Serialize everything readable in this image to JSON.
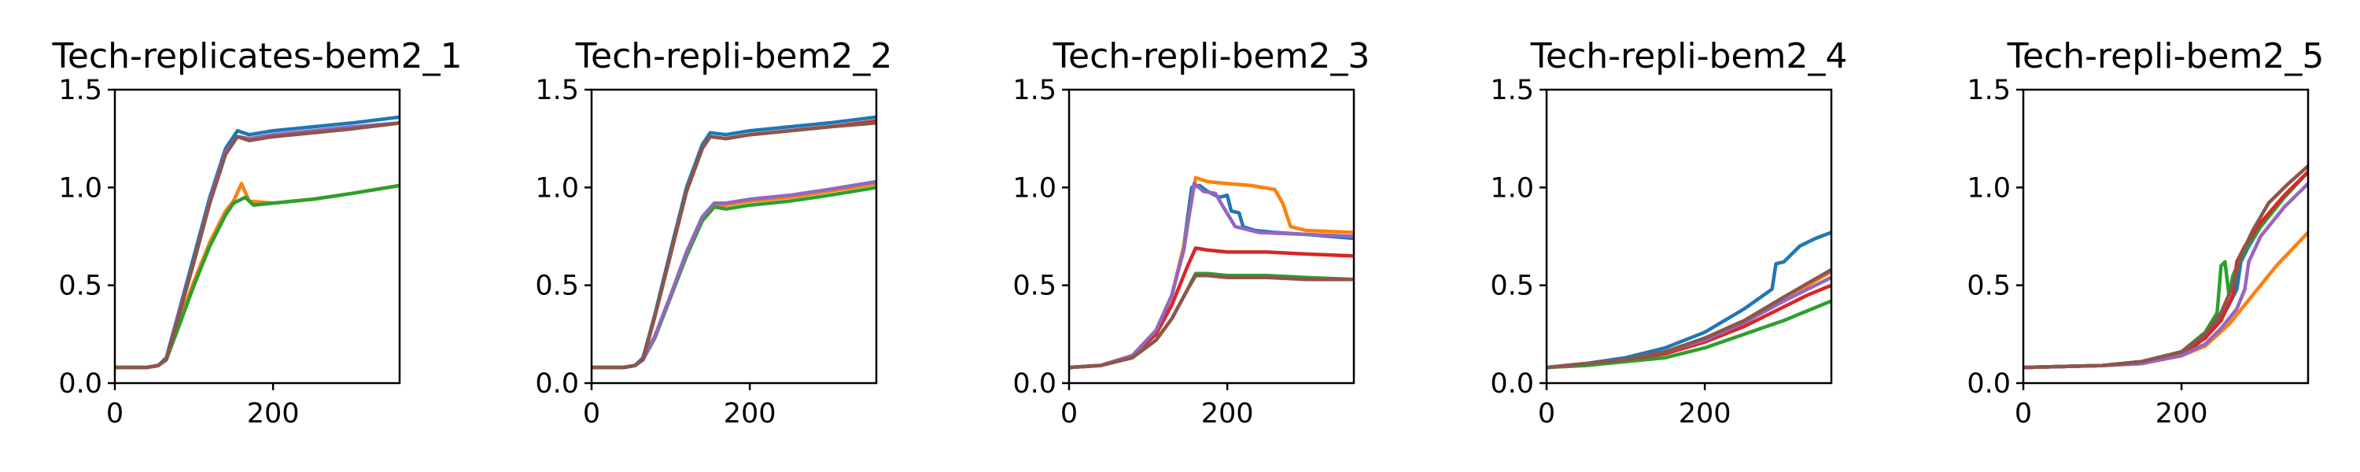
{
  "colors": {
    "C0": "#1f77b4",
    "C1": "#ff7f0e",
    "C2": "#2ca02c",
    "C3": "#d62728",
    "C4": "#9467bd",
    "C5": "#8c564b"
  },
  "chart_data": [
    {
      "type": "line",
      "title": "Tech-replicates-bem2_1",
      "xlim": [
        0,
        360
      ],
      "ylim": [
        0,
        1.5
      ],
      "xticks": [
        "0",
        "200"
      ],
      "yticks": [
        "0.0",
        "0.5",
        "1.0",
        "1.5"
      ],
      "grid": false,
      "series": [
        {
          "color": "C0",
          "x": [
            0,
            40,
            55,
            65,
            80,
            100,
            120,
            140,
            155,
            170,
            200,
            250,
            300,
            360
          ],
          "y": [
            0.08,
            0.08,
            0.09,
            0.13,
            0.35,
            0.65,
            0.95,
            1.2,
            1.29,
            1.27,
            1.29,
            1.31,
            1.33,
            1.36
          ]
        },
        {
          "color": "C1",
          "x": [
            0,
            40,
            55,
            65,
            80,
            100,
            120,
            140,
            150,
            160,
            170,
            200,
            250,
            300,
            360
          ],
          "y": [
            0.08,
            0.08,
            0.09,
            0.12,
            0.3,
            0.52,
            0.72,
            0.88,
            0.93,
            1.02,
            0.93,
            0.92,
            0.94,
            0.97,
            1.01
          ]
        },
        {
          "color": "C2",
          "x": [
            0,
            40,
            55,
            65,
            80,
            100,
            120,
            140,
            150,
            165,
            175,
            200,
            250,
            300,
            360
          ],
          "y": [
            0.08,
            0.08,
            0.09,
            0.12,
            0.28,
            0.5,
            0.7,
            0.86,
            0.92,
            0.95,
            0.91,
            0.92,
            0.94,
            0.97,
            1.01
          ]
        },
        {
          "color": "C3",
          "x": [
            0,
            40,
            55,
            65,
            80,
            100,
            120,
            140,
            155,
            170,
            200,
            250,
            300,
            360
          ],
          "y": [
            0.08,
            0.08,
            0.09,
            0.12,
            0.34,
            0.62,
            0.93,
            1.18,
            1.26,
            1.25,
            1.26,
            1.28,
            1.3,
            1.33
          ]
        },
        {
          "color": "C4",
          "x": [
            0,
            40,
            55,
            65,
            80,
            100,
            120,
            140,
            155,
            170,
            200,
            250,
            300,
            360
          ],
          "y": [
            0.08,
            0.08,
            0.09,
            0.12,
            0.34,
            0.62,
            0.93,
            1.18,
            1.26,
            1.25,
            1.27,
            1.29,
            1.31,
            1.33
          ]
        },
        {
          "color": "C5",
          "x": [
            0,
            40,
            55,
            65,
            80,
            100,
            120,
            140,
            155,
            170,
            200,
            250,
            300,
            360
          ],
          "y": [
            0.08,
            0.08,
            0.09,
            0.12,
            0.33,
            0.62,
            0.92,
            1.17,
            1.26,
            1.24,
            1.26,
            1.28,
            1.3,
            1.33
          ]
        }
      ]
    },
    {
      "type": "line",
      "title": "Tech-repli-bem2_2",
      "xlim": [
        0,
        360
      ],
      "ylim": [
        0,
        1.5
      ],
      "xticks": [
        "0",
        "200"
      ],
      "yticks": [
        "0.0",
        "0.5",
        "1.0",
        "1.5"
      ],
      "grid": false,
      "series": [
        {
          "color": "C0",
          "x": [
            0,
            40,
            55,
            65,
            80,
            100,
            120,
            140,
            150,
            170,
            200,
            250,
            300,
            360
          ],
          "y": [
            0.08,
            0.08,
            0.09,
            0.13,
            0.35,
            0.68,
            1.0,
            1.22,
            1.28,
            1.27,
            1.29,
            1.31,
            1.33,
            1.36
          ]
        },
        {
          "color": "C1",
          "x": [
            0,
            40,
            55,
            65,
            80,
            100,
            120,
            140,
            155,
            170,
            200,
            250,
            300,
            360
          ],
          "y": [
            0.08,
            0.08,
            0.09,
            0.12,
            0.24,
            0.45,
            0.67,
            0.85,
            0.91,
            0.91,
            0.93,
            0.95,
            0.98,
            1.02
          ]
        },
        {
          "color": "C2",
          "x": [
            0,
            40,
            55,
            65,
            80,
            100,
            120,
            140,
            155,
            170,
            200,
            250,
            300,
            360
          ],
          "y": [
            0.08,
            0.08,
            0.09,
            0.12,
            0.23,
            0.44,
            0.65,
            0.83,
            0.9,
            0.89,
            0.91,
            0.93,
            0.96,
            1.0
          ]
        },
        {
          "color": "C3",
          "x": [
            0,
            40,
            55,
            65,
            80,
            100,
            120,
            140,
            150,
            170,
            200,
            250,
            300,
            360
          ],
          "y": [
            0.08,
            0.08,
            0.09,
            0.12,
            0.34,
            0.66,
            0.98,
            1.2,
            1.26,
            1.25,
            1.27,
            1.29,
            1.31,
            1.34
          ]
        },
        {
          "color": "C4",
          "x": [
            0,
            40,
            55,
            65,
            80,
            100,
            120,
            140,
            155,
            170,
            200,
            250,
            300,
            360
          ],
          "y": [
            0.08,
            0.08,
            0.09,
            0.12,
            0.24,
            0.45,
            0.67,
            0.85,
            0.92,
            0.92,
            0.94,
            0.96,
            0.99,
            1.03
          ]
        },
        {
          "color": "C5",
          "x": [
            0,
            40,
            55,
            65,
            80,
            100,
            120,
            140,
            150,
            170,
            200,
            250,
            300,
            360
          ],
          "y": [
            0.08,
            0.08,
            0.09,
            0.12,
            0.34,
            0.66,
            0.98,
            1.2,
            1.26,
            1.25,
            1.27,
            1.29,
            1.31,
            1.33
          ]
        }
      ]
    },
    {
      "type": "line",
      "title": "Tech-repli-bem2_3",
      "xlim": [
        0,
        360
      ],
      "ylim": [
        0,
        1.5
      ],
      "xticks": [
        "0",
        "200"
      ],
      "yticks": [
        "0.0",
        "0.5",
        "1.0",
        "1.5"
      ],
      "grid": false,
      "series": [
        {
          "color": "C0",
          "x": [
            0,
            40,
            80,
            110,
            130,
            145,
            155,
            165,
            175,
            190,
            200,
            205,
            215,
            220,
            235,
            260,
            300,
            360
          ],
          "y": [
            0.08,
            0.09,
            0.14,
            0.27,
            0.45,
            0.7,
            1.0,
            1.01,
            0.98,
            0.95,
            0.96,
            0.88,
            0.87,
            0.8,
            0.78,
            0.77,
            0.76,
            0.74
          ]
        },
        {
          "color": "C1",
          "x": [
            0,
            40,
            80,
            110,
            130,
            145,
            160,
            175,
            200,
            230,
            260,
            270,
            280,
            300,
            360
          ],
          "y": [
            0.08,
            0.09,
            0.14,
            0.27,
            0.45,
            0.7,
            1.05,
            1.03,
            1.02,
            1.01,
            0.99,
            0.92,
            0.8,
            0.78,
            0.77
          ]
        },
        {
          "color": "C2",
          "x": [
            0,
            40,
            80,
            110,
            130,
            150,
            160,
            175,
            200,
            250,
            300,
            360
          ],
          "y": [
            0.08,
            0.09,
            0.13,
            0.22,
            0.33,
            0.48,
            0.56,
            0.56,
            0.55,
            0.55,
            0.54,
            0.53
          ]
        },
        {
          "color": "C3",
          "x": [
            0,
            40,
            80,
            110,
            130,
            150,
            160,
            175,
            200,
            250,
            300,
            360
          ],
          "y": [
            0.08,
            0.09,
            0.14,
            0.25,
            0.4,
            0.6,
            0.69,
            0.68,
            0.67,
            0.67,
            0.66,
            0.65
          ]
        },
        {
          "color": "C4",
          "x": [
            0,
            40,
            80,
            110,
            130,
            145,
            158,
            170,
            185,
            195,
            210,
            240,
            300,
            360
          ],
          "y": [
            0.08,
            0.09,
            0.14,
            0.27,
            0.45,
            0.68,
            1.02,
            0.98,
            0.97,
            0.9,
            0.8,
            0.77,
            0.76,
            0.75
          ]
        },
        {
          "color": "C5",
          "x": [
            0,
            40,
            80,
            110,
            130,
            150,
            160,
            175,
            200,
            250,
            300,
            360
          ],
          "y": [
            0.08,
            0.09,
            0.13,
            0.22,
            0.33,
            0.48,
            0.55,
            0.55,
            0.54,
            0.54,
            0.53,
            0.53
          ]
        }
      ]
    },
    {
      "type": "line",
      "title": "Tech-repli-bem2_4",
      "xlim": [
        0,
        360
      ],
      "ylim": [
        0,
        1.5
      ],
      "xticks": [
        "0",
        "200"
      ],
      "yticks": [
        "0.0",
        "0.5",
        "1.0",
        "1.5"
      ],
      "grid": false,
      "series": [
        {
          "color": "C0",
          "x": [
            0,
            50,
            100,
            150,
            200,
            250,
            285,
            290,
            300,
            320,
            340,
            360
          ],
          "y": [
            0.08,
            0.1,
            0.13,
            0.18,
            0.26,
            0.38,
            0.48,
            0.61,
            0.62,
            0.7,
            0.74,
            0.77
          ]
        },
        {
          "color": "C1",
          "x": [
            0,
            50,
            100,
            150,
            200,
            250,
            300,
            330,
            360
          ],
          "y": [
            0.08,
            0.1,
            0.12,
            0.16,
            0.23,
            0.32,
            0.44,
            0.5,
            0.57
          ]
        },
        {
          "color": "C2",
          "x": [
            0,
            50,
            100,
            150,
            200,
            250,
            300,
            330,
            360
          ],
          "y": [
            0.08,
            0.09,
            0.11,
            0.13,
            0.18,
            0.25,
            0.32,
            0.37,
            0.42
          ]
        },
        {
          "color": "C3",
          "x": [
            0,
            50,
            100,
            150,
            200,
            250,
            300,
            330,
            360
          ],
          "y": [
            0.08,
            0.1,
            0.12,
            0.15,
            0.21,
            0.29,
            0.39,
            0.45,
            0.5
          ]
        },
        {
          "color": "C4",
          "x": [
            0,
            50,
            100,
            150,
            200,
            250,
            300,
            330,
            360
          ],
          "y": [
            0.08,
            0.1,
            0.12,
            0.16,
            0.22,
            0.31,
            0.42,
            0.48,
            0.54
          ]
        },
        {
          "color": "C5",
          "x": [
            0,
            50,
            100,
            150,
            200,
            250,
            300,
            330,
            360
          ],
          "y": [
            0.08,
            0.1,
            0.12,
            0.16,
            0.23,
            0.32,
            0.44,
            0.51,
            0.58
          ]
        }
      ]
    },
    {
      "type": "line",
      "title": "Tech-repli-bem2_5",
      "xlim": [
        0,
        360
      ],
      "ylim": [
        0,
        1.5
      ],
      "xticks": [
        "0",
        "200"
      ],
      "yticks": [
        "0.0",
        "0.5",
        "1.0",
        "1.5"
      ],
      "grid": false,
      "series": [
        {
          "color": "C0",
          "x": [
            0,
            100,
            150,
            200,
            220,
            240,
            250,
            260,
            270,
            275,
            285,
            300,
            330,
            360
          ],
          "y": [
            0.08,
            0.09,
            0.1,
            0.15,
            0.2,
            0.28,
            0.33,
            0.4,
            0.48,
            0.62,
            0.7,
            0.8,
            0.95,
            1.08
          ]
        },
        {
          "color": "C1",
          "x": [
            0,
            100,
            150,
            200,
            230,
            260,
            290,
            320,
            360
          ],
          "y": [
            0.08,
            0.09,
            0.1,
            0.14,
            0.19,
            0.3,
            0.45,
            0.6,
            0.77
          ]
        },
        {
          "color": "C2",
          "x": [
            0,
            100,
            150,
            200,
            230,
            245,
            250,
            255,
            260,
            265,
            280,
            300,
            330,
            360
          ],
          "y": [
            0.08,
            0.09,
            0.11,
            0.16,
            0.26,
            0.36,
            0.6,
            0.62,
            0.45,
            0.55,
            0.68,
            0.8,
            0.95,
            1.08
          ]
        },
        {
          "color": "C3",
          "x": [
            0,
            100,
            150,
            200,
            230,
            250,
            265,
            270,
            280,
            300,
            330,
            360
          ],
          "y": [
            0.08,
            0.09,
            0.11,
            0.15,
            0.23,
            0.32,
            0.45,
            0.62,
            0.7,
            0.82,
            0.96,
            1.08
          ]
        },
        {
          "color": "C4",
          "x": [
            0,
            100,
            150,
            200,
            230,
            250,
            270,
            280,
            285,
            300,
            330,
            360
          ],
          "y": [
            0.08,
            0.09,
            0.1,
            0.14,
            0.2,
            0.28,
            0.38,
            0.48,
            0.62,
            0.75,
            0.9,
            1.02
          ]
        },
        {
          "color": "C5",
          "x": [
            0,
            100,
            150,
            200,
            230,
            250,
            265,
            275,
            290,
            310,
            335,
            360
          ],
          "y": [
            0.08,
            0.09,
            0.11,
            0.16,
            0.25,
            0.36,
            0.5,
            0.65,
            0.78,
            0.92,
            1.02,
            1.11
          ]
        }
      ]
    }
  ]
}
